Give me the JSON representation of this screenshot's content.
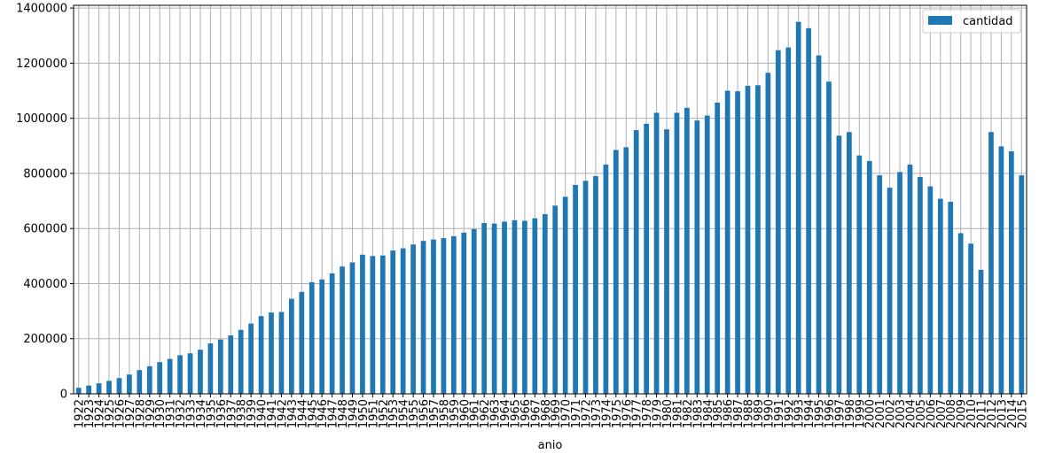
{
  "chart_data": {
    "type": "bar",
    "xlabel": "anio",
    "ylabel": "",
    "ylim": [
      0,
      1410000
    ],
    "yticks": [
      0,
      200000,
      400000,
      600000,
      800000,
      1000000,
      1200000,
      1400000
    ],
    "grid": true,
    "legend_position": "top-right",
    "bar_color": "#1f77b4",
    "categories": [
      "1922",
      "1923",
      "1924",
      "1925",
      "1926",
      "1927",
      "1928",
      "1929",
      "1930",
      "1931",
      "1932",
      "1933",
      "1934",
      "1935",
      "1936",
      "1937",
      "1938",
      "1939",
      "1940",
      "1941",
      "1942",
      "1943",
      "1944",
      "1945",
      "1946",
      "1947",
      "1948",
      "1949",
      "1950",
      "1951",
      "1952",
      "1953",
      "1954",
      "1955",
      "1956",
      "1957",
      "1958",
      "1959",
      "1960",
      "1961",
      "1962",
      "1963",
      "1964",
      "1965",
      "1966",
      "1967",
      "1968",
      "1969",
      "1970",
      "1971",
      "1972",
      "1973",
      "1974",
      "1975",
      "1976",
      "1977",
      "1978",
      "1979",
      "1980",
      "1981",
      "1982",
      "1983",
      "1984",
      "1985",
      "1986",
      "1987",
      "1988",
      "1989",
      "1990",
      "1991",
      "1992",
      "1993",
      "1994",
      "1995",
      "1996",
      "1997",
      "1998",
      "1999",
      "2000",
      "2001",
      "2002",
      "2003",
      "2004",
      "2005",
      "2006",
      "2007",
      "2008",
      "2009",
      "2010",
      "2011",
      "2012",
      "2013",
      "2014",
      "2015"
    ],
    "series": [
      {
        "name": "cantidad",
        "values": [
          22000,
          30000,
          38000,
          47000,
          57000,
          70000,
          86000,
          100000,
          115000,
          127000,
          140000,
          147000,
          160000,
          183000,
          197000,
          212000,
          232000,
          255000,
          282000,
          295000,
          297000,
          345000,
          370000,
          405000,
          415000,
          437000,
          462000,
          477000,
          505000,
          500000,
          502000,
          520000,
          528000,
          542000,
          555000,
          560000,
          565000,
          572000,
          585000,
          598000,
          620000,
          618000,
          625000,
          630000,
          628000,
          637000,
          652000,
          683000,
          715000,
          758000,
          773000,
          790000,
          832000,
          885000,
          895000,
          957000,
          980000,
          1020000,
          960000,
          1020000,
          1038000,
          992000,
          1010000,
          1057000,
          1100000,
          1098000,
          1118000,
          1120000,
          1165000,
          1247000,
          1257000,
          1350000,
          1327000,
          1228000,
          1133000,
          937000,
          950000,
          865000,
          845000,
          793000,
          748000,
          805000,
          832000,
          787000,
          753000,
          708000,
          697000,
          583000,
          545000,
          450000,
          950000,
          898000,
          880000,
          793000
        ]
      }
    ]
  }
}
